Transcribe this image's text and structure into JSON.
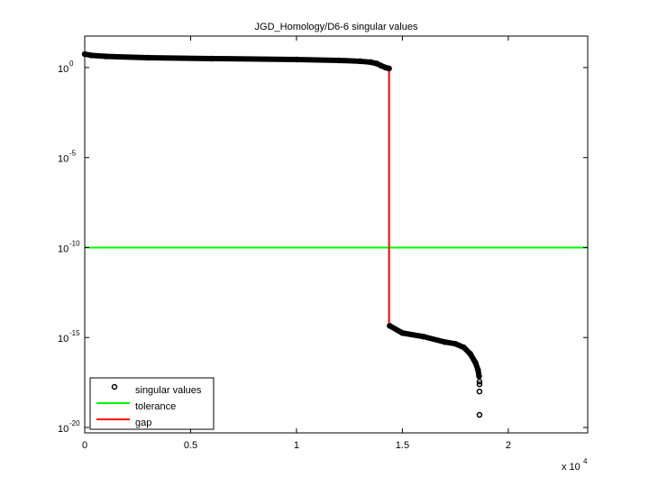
{
  "chart_data": {
    "type": "scatter",
    "title": "JGD_Homology/D6-6 singular values",
    "xlabel": "",
    "ylabel": "",
    "x_exponent_label": {
      "base": "x 10",
      "exp": "4"
    },
    "xlim": [
      0,
      23750
    ],
    "ylim_log10": [
      -20.3,
      1.75
    ],
    "yscale": "log",
    "x_ticks": [
      {
        "value": 0,
        "label": "0"
      },
      {
        "value": 5000,
        "label": "0.5"
      },
      {
        "value": 10000,
        "label": "1"
      },
      {
        "value": 15000,
        "label": "1.5"
      },
      {
        "value": 20000,
        "label": "2"
      }
    ],
    "y_ticks": [
      {
        "exp": 0,
        "base": "10",
        "label": "0"
      },
      {
        "exp": -5,
        "base": "10",
        "label": "-5"
      },
      {
        "exp": -10,
        "base": "10",
        "label": "-10"
      },
      {
        "exp": -15,
        "base": "10",
        "label": "-15"
      },
      {
        "exp": -20,
        "base": "10",
        "label": "-20"
      }
    ],
    "grid": false,
    "legend_placement": "bottom-left",
    "series": [
      {
        "name": "singular values",
        "color": "#000000",
        "marker": "circle",
        "points_log10": [
          [
            0,
            0.75
          ],
          [
            300,
            0.68
          ],
          [
            1000,
            0.62
          ],
          [
            3000,
            0.55
          ],
          [
            6000,
            0.5
          ],
          [
            10000,
            0.45
          ],
          [
            12000,
            0.4
          ],
          [
            13000,
            0.35
          ],
          [
            13500,
            0.3
          ],
          [
            13800,
            0.22
          ],
          [
            14000,
            0.1
          ],
          [
            14200,
            0.0
          ],
          [
            14370,
            -0.05
          ],
          [
            14400,
            -14.35
          ],
          [
            15000,
            -14.75
          ],
          [
            16000,
            -14.95
          ],
          [
            17000,
            -15.25
          ],
          [
            17500,
            -15.35
          ],
          [
            17900,
            -15.55
          ],
          [
            18200,
            -15.9
          ],
          [
            18450,
            -16.4
          ],
          [
            18570,
            -16.8
          ],
          [
            18620,
            -17.15
          ],
          [
            18640,
            -17.45
          ],
          [
            18640,
            -17.6
          ],
          [
            18640,
            -18.0
          ],
          [
            18640,
            -19.3
          ]
        ]
      },
      {
        "name": "tolerance",
        "color": "#00ff00",
        "type": "hline",
        "y_log10": -10
      },
      {
        "name": "gap",
        "color": "#ff0000",
        "type": "vline",
        "x": 14370,
        "y_log10_range": [
          -14.35,
          -0.05
        ]
      }
    ]
  }
}
